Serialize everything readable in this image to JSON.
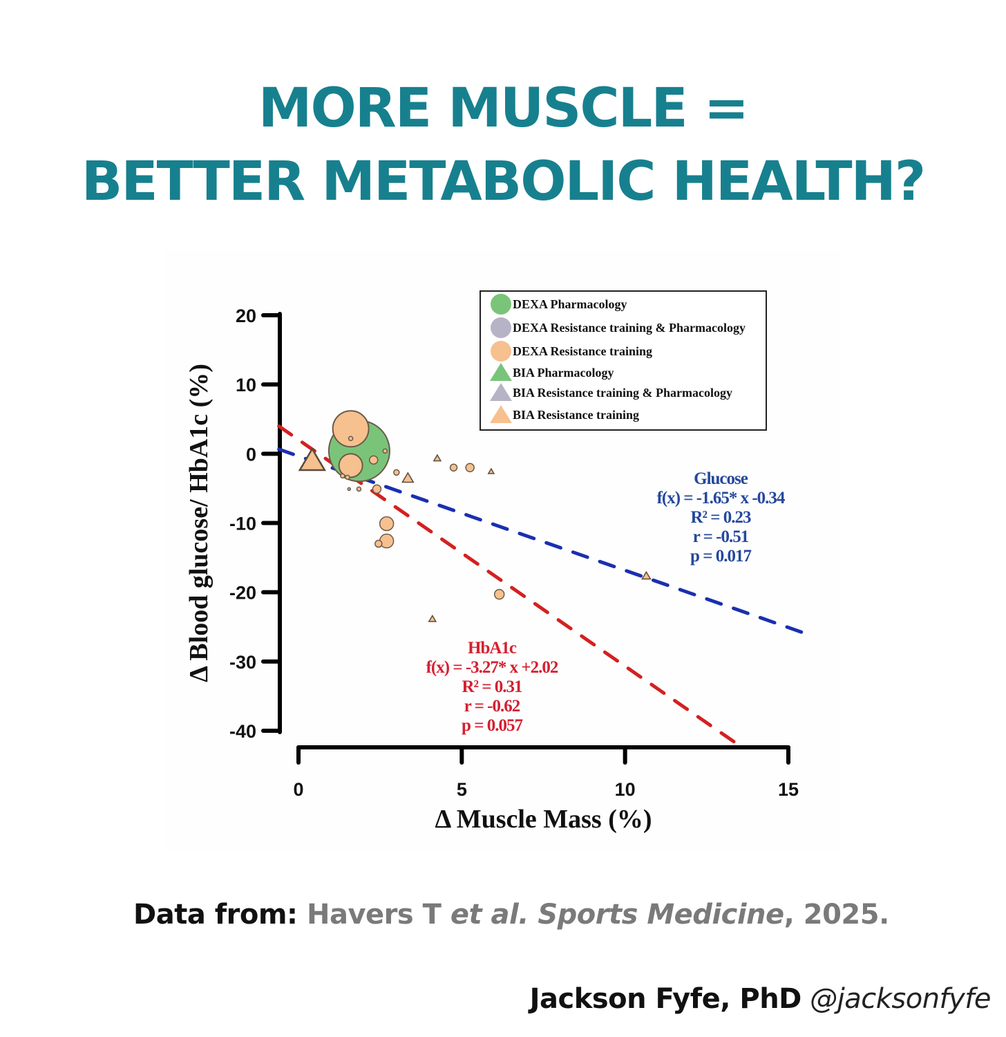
{
  "header": {
    "title_line_1": "MORE MUSCLE =",
    "title_line_2": "BETTER METABOLIC HEALTH?",
    "title_color": "#17808e"
  },
  "chart_data": {
    "type": "scatter",
    "xlabel": "Δ Muscle Mass (%)",
    "ylabel": "Δ Blood glucose/ HbA1c (%)",
    "xlim": [
      0,
      15
    ],
    "ylim": [
      -40,
      20
    ],
    "x_ticks": [
      "0",
      "5",
      "10",
      "15"
    ],
    "x_tick_values": [
      0,
      5,
      10,
      15
    ],
    "y_ticks": [
      "20",
      "10",
      "0",
      "-10",
      "-20",
      "-30",
      "-40"
    ],
    "y_tick_values": [
      20,
      10,
      0,
      -10,
      -20,
      -30,
      -40
    ],
    "grid": false,
    "legend_position": "top-right",
    "legend": [
      {
        "label": "DEXA Pharmacology",
        "shape": "circle",
        "color": "#7ac47a"
      },
      {
        "label": "DEXA Resistance training & Pharmacology",
        "shape": "circle",
        "color": "#b6b3c6"
      },
      {
        "label": "DEXA Resistance training",
        "shape": "circle",
        "color": "#f6c08f"
      },
      {
        "label": "BIA Pharmacology",
        "shape": "triangle",
        "color": "#7ac47a"
      },
      {
        "label": "BIA Resistance training & Pharmacology",
        "shape": "triangle",
        "color": "#b6b3c6"
      },
      {
        "label": "BIA Resistance training",
        "shape": "triangle",
        "color": "#f6c08f"
      }
    ],
    "points": [
      {
        "group": "DEXA Pharmacology",
        "shape": "circle",
        "x": 1.86,
        "y": 0.4,
        "size": 44
      },
      {
        "group": "DEXA Resistance training",
        "shape": "circle",
        "x": 1.6,
        "y": 3.6,
        "size": 26
      },
      {
        "group": "DEXA Resistance training",
        "shape": "circle",
        "x": 1.6,
        "y": -1.7,
        "size": 17
      },
      {
        "group": "DEXA Resistance training",
        "shape": "circle",
        "x": 1.6,
        "y": 2.2,
        "size": 3
      },
      {
        "group": "DEXA Resistance training",
        "shape": "circle",
        "x": 2.3,
        "y": -0.9,
        "size": 6
      },
      {
        "group": "DEXA Resistance training",
        "shape": "circle",
        "x": 2.65,
        "y": 0.4,
        "size": 3
      },
      {
        "group": "DEXA Resistance training",
        "shape": "circle",
        "x": 1.35,
        "y": -3.2,
        "size": 3
      },
      {
        "group": "DEXA Resistance training",
        "shape": "circle",
        "x": 1.5,
        "y": -3.4,
        "size": 3
      },
      {
        "group": "DEXA Resistance training & Pharmacology",
        "shape": "circle",
        "x": 1.55,
        "y": -5.1,
        "size": 2
      },
      {
        "group": "DEXA Resistance training",
        "shape": "circle",
        "x": 1.85,
        "y": -5.1,
        "size": 3
      },
      {
        "group": "DEXA Resistance training",
        "shape": "circle",
        "x": 2.4,
        "y": -5.1,
        "size": 6
      },
      {
        "group": "DEXA Resistance training",
        "shape": "circle",
        "x": 3.0,
        "y": -2.7,
        "size": 4
      },
      {
        "group": "DEXA Resistance training",
        "shape": "circle",
        "x": 2.7,
        "y": -10.1,
        "size": 10
      },
      {
        "group": "DEXA Resistance training",
        "shape": "circle",
        "x": 2.7,
        "y": -12.6,
        "size": 10
      },
      {
        "group": "DEXA Resistance training",
        "shape": "circle",
        "x": 2.45,
        "y": -13.0,
        "size": 5
      },
      {
        "group": "DEXA Resistance training",
        "shape": "circle",
        "x": 4.75,
        "y": -2.0,
        "size": 5
      },
      {
        "group": "DEXA Resistance training",
        "shape": "circle",
        "x": 5.25,
        "y": -2.0,
        "size": 6
      },
      {
        "group": "DEXA Resistance training",
        "shape": "circle",
        "x": 6.15,
        "y": -20.3,
        "size": 7
      },
      {
        "group": "BIA Resistance training",
        "shape": "triangle",
        "x": 0.42,
        "y": -1.2,
        "size": 18
      },
      {
        "group": "BIA Resistance training",
        "shape": "triangle",
        "x": 3.35,
        "y": -3.6,
        "size": 8
      },
      {
        "group": "BIA Resistance training",
        "shape": "triangle",
        "x": 4.25,
        "y": -0.7,
        "size": 5
      },
      {
        "group": "BIA Resistance training",
        "shape": "triangle",
        "x": 5.9,
        "y": -2.6,
        "size": 4
      },
      {
        "group": "BIA Resistance training",
        "shape": "triangle",
        "x": 4.1,
        "y": -23.9,
        "size": 5
      },
      {
        "group": "BIA Resistance training",
        "shape": "triangle",
        "x": 10.65,
        "y": -17.7,
        "size": 6
      }
    ],
    "fits": [
      {
        "name": "Glucose",
        "color": "#1a2fb0",
        "label_color": "#25489c",
        "slope": -1.65,
        "intercept": -0.34,
        "x_range": [
          -0.6,
          15.6
        ],
        "lines": [
          "Glucose",
          "f(x) = -1.65* x -0.34",
          "R² = 0.23",
          "r = -0.51",
          "p = 0.017"
        ]
      },
      {
        "name": "HbA1c",
        "color": "#d42020",
        "label_color": "#d42030",
        "slope": -3.27,
        "intercept": 2.02,
        "x_range": [
          -0.6,
          13.4
        ],
        "lines": [
          "HbA1c",
          "f(x) = -3.27* x +2.02",
          "R² = 0.31",
          "r = -0.62",
          "p = 0.057"
        ]
      }
    ]
  },
  "footer": {
    "source_prefix": "Data from:",
    "source_authors": "Havers T",
    "source_etal": "et al. Sports Medicine",
    "source_year": ", 2025.",
    "credit_name": "Jackson Fyfe, PhD",
    "credit_handle": "@jacksonfyfe"
  }
}
